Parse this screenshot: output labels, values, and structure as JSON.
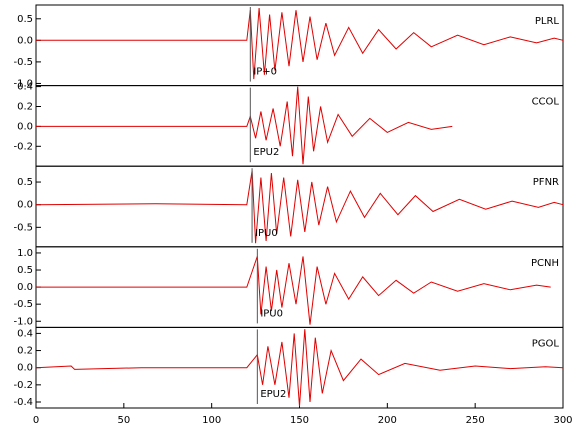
{
  "chart_data": [
    {
      "type": "line",
      "station": "PLRL",
      "phase": "IP+0",
      "phase_time": 122,
      "xlim": [
        0,
        300
      ],
      "ylim": [
        -1.05,
        0.82
      ],
      "yticks": [
        0.5,
        {
          "value": 0,
          "label": "0.0"
        },
        -0.5,
        {
          "value": -1,
          "label": "-1.0"
        }
      ],
      "x": [
        0,
        60,
        120,
        122,
        124,
        127,
        130,
        133,
        136,
        140,
        144,
        148,
        152,
        156,
        160,
        165,
        170,
        178,
        186,
        195,
        205,
        215,
        225,
        240,
        255,
        270,
        285,
        295,
        300
      ],
      "series": [
        {
          "color": "#e00000",
          "values": [
            0,
            0,
            0,
            0.7,
            -0.9,
            0.75,
            -0.8,
            0.6,
            -0.7,
            0.65,
            -0.6,
            0.7,
            -0.5,
            0.55,
            -0.45,
            0.4,
            -0.35,
            0.3,
            -0.3,
            0.25,
            -0.2,
            0.18,
            -0.15,
            0.12,
            -0.1,
            0.08,
            -0.06,
            0.05,
            0
          ]
        }
      ]
    },
    {
      "type": "line",
      "station": "CCOL",
      "phase": "EPU2",
      "phase_time": 122,
      "xlim": [
        0,
        300
      ],
      "ylim": [
        -0.4,
        0.41
      ],
      "yticks": [
        0.4,
        0.2,
        {
          "value": 0,
          "label": "0.0"
        },
        -0.2
      ],
      "x": [
        0,
        60,
        120,
        122,
        125,
        128,
        131,
        135,
        139,
        143,
        146,
        149,
        152,
        155,
        158,
        162,
        166,
        172,
        180,
        190,
        200,
        212,
        225,
        237
      ],
      "series": [
        {
          "color": "#e00000",
          "values": [
            0,
            0,
            0,
            0.1,
            -0.12,
            0.15,
            -0.14,
            0.18,
            -0.2,
            0.25,
            -0.3,
            0.4,
            -0.38,
            0.3,
            -0.25,
            0.2,
            -0.16,
            0.12,
            -0.1,
            0.08,
            -0.06,
            0.04,
            -0.03,
            0
          ]
        }
      ]
    },
    {
      "type": "line",
      "station": "PFNR",
      "phase": "IPU0",
      "phase_time": 123,
      "xlim": [
        0,
        300
      ],
      "ylim": [
        -0.93,
        0.85
      ],
      "yticks": [
        0.5,
        {
          "value": 0,
          "label": "0.0"
        },
        -0.5
      ],
      "x": [
        0,
        68,
        120,
        123,
        125,
        128,
        131,
        134,
        137,
        141,
        145,
        149,
        153,
        157,
        161,
        166,
        171,
        179,
        187,
        196,
        206,
        216,
        226,
        241,
        256,
        271,
        286,
        295,
        300
      ],
      "series": [
        {
          "color": "#e00000",
          "values": [
            0,
            0.02,
            0,
            0.75,
            -0.85,
            0.6,
            -0.8,
            0.7,
            -0.65,
            0.6,
            -0.7,
            0.55,
            -0.6,
            0.5,
            -0.45,
            0.4,
            -0.38,
            0.3,
            -0.28,
            0.25,
            -0.22,
            0.2,
            -0.15,
            0.12,
            -0.1,
            0.08,
            -0.06,
            0.05,
            0
          ]
        }
      ]
    },
    {
      "type": "line",
      "station": "PCNH",
      "phase": "IPU0",
      "phase_time": 126,
      "xlim": [
        0,
        300
      ],
      "ylim": [
        -1.18,
        1.18
      ],
      "yticks": [
        {
          "value": 1,
          "label": "1.0"
        },
        0.5,
        {
          "value": 0,
          "label": "0.0"
        },
        -0.5,
        {
          "value": -1,
          "label": "-1.0"
        }
      ],
      "x": [
        0,
        60,
        120,
        126,
        128,
        131,
        134,
        137,
        140,
        144,
        148,
        152,
        156,
        160,
        165,
        170,
        178,
        186,
        195,
        205,
        215,
        225,
        240,
        255,
        270,
        285,
        293
      ],
      "series": [
        {
          "color": "#e00000",
          "values": [
            0,
            0,
            0,
            0.9,
            -0.8,
            0.6,
            -0.7,
            0.5,
            -0.6,
            0.7,
            -0.5,
            0.9,
            -1.1,
            0.6,
            -0.5,
            0.4,
            -0.35,
            0.3,
            -0.25,
            0.2,
            -0.18,
            0.15,
            -0.12,
            0.1,
            -0.08,
            0.06,
            0
          ]
        }
      ]
    },
    {
      "type": "line",
      "station": "PGOL",
      "phase": "EPU2",
      "phase_time": 126,
      "xlim": [
        0,
        300
      ],
      "ylim": [
        -0.47,
        0.47
      ],
      "yticks": [
        0.4,
        0.2,
        {
          "value": 0,
          "label": "0.0"
        },
        -0.2,
        -0.4
      ],
      "xticks": [
        0,
        50,
        100,
        150,
        200,
        250,
        300
      ],
      "x": [
        0,
        20,
        22,
        60,
        120,
        126,
        129,
        132,
        136,
        140,
        144,
        147,
        150,
        153,
        156,
        159,
        163,
        168,
        175,
        185,
        195,
        210,
        230,
        250,
        270,
        290,
        300
      ],
      "series": [
        {
          "color": "#e00000",
          "values": [
            0,
            0.02,
            -0.02,
            0,
            0,
            0.15,
            -0.2,
            0.25,
            -0.2,
            0.3,
            -0.35,
            0.4,
            -0.45,
            0.45,
            -0.4,
            0.35,
            -0.3,
            0.2,
            -0.15,
            0.1,
            -0.08,
            0.05,
            -0.03,
            0.02,
            -0.01,
            0.01,
            0
          ]
        }
      ]
    }
  ]
}
